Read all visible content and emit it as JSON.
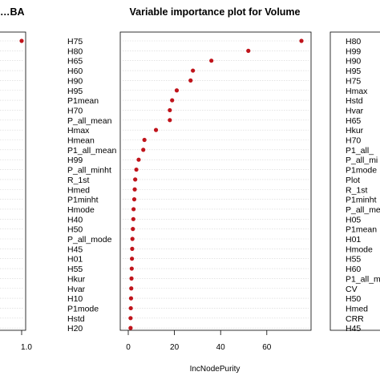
{
  "chart_data": [
    {
      "type": "scatter",
      "panel": "left-partial",
      "title": "…BA",
      "x_ticks": [
        "1.0"
      ],
      "categories": [],
      "values": [
        {
          "label": "",
          "value": 0.93
        }
      ]
    },
    {
      "type": "scatter",
      "panel": "center",
      "title": "Variable importance plot for Volume",
      "xlabel": "IncNodePurity",
      "xlim": [
        0,
        76
      ],
      "x_ticks": [
        0,
        20,
        40,
        60
      ],
      "grid": "horizontal dotted",
      "point_color": "#c0141b",
      "categories": [
        "H75",
        "H80",
        "H65",
        "H60",
        "H90",
        "H95",
        "P1mean",
        "H70",
        "P_all_mean",
        "Hmax",
        "Hmean",
        "P1_all_mean",
        "H99",
        "P_all_minht",
        "R_1st",
        "Hmed",
        "P1minht",
        "Hmode",
        "H40",
        "H50",
        "P_all_mode",
        "H45",
        "H01",
        "H55",
        "Hkur",
        "Hvar",
        "H10",
        "P1mode",
        "Hstd",
        "H20"
      ],
      "values": [
        75,
        52,
        36,
        28,
        27,
        21,
        19,
        18,
        18,
        12,
        7,
        6.5,
        4.5,
        3.5,
        3,
        2.8,
        2.6,
        2.3,
        2.2,
        2.0,
        1.8,
        1.7,
        1.6,
        1.5,
        1.4,
        1.3,
        1.2,
        1.1,
        1.0,
        1.0
      ]
    },
    {
      "type": "scatter",
      "panel": "right-partial",
      "categories": [
        "H80",
        "H99",
        "H90",
        "H95",
        "H75",
        "Hmax",
        "Hstd",
        "Hvar",
        "H65",
        "Hkur",
        "H70",
        "P1_all_",
        "P_all_mi",
        "P1mode",
        "Plot",
        "R_1st",
        "P1minht",
        "P_all_me",
        "H05",
        "P1mean",
        "H01",
        "Hmode",
        "H55",
        "H60",
        "P1_all_m",
        "CV",
        "H50",
        "Hmed",
        "CRR",
        "H45"
      ]
    }
  ]
}
